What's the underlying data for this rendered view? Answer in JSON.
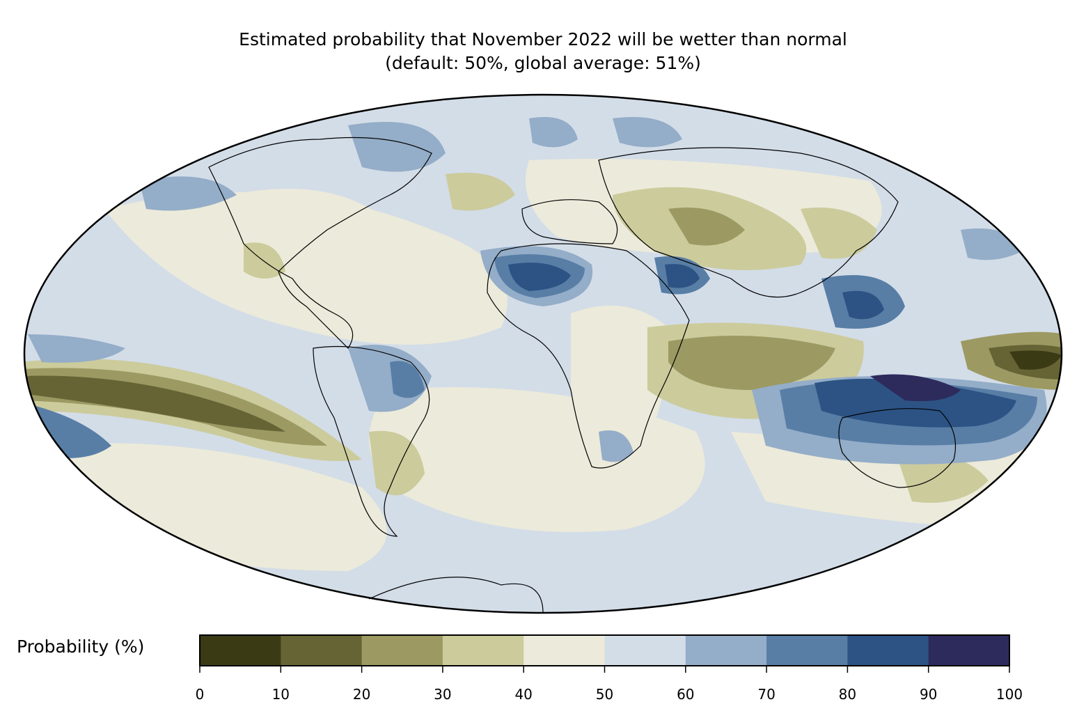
{
  "title": {
    "line1": "Estimated probability that November 2022 will be wetter than normal",
    "line2": "(default: 50%, global average: 51%)"
  },
  "colorbar": {
    "label": "Probability (%)",
    "ticks": [
      "0",
      "10",
      "20",
      "30",
      "40",
      "50",
      "60",
      "70",
      "80",
      "90",
      "100"
    ],
    "bins": [
      {
        "range": [
          0,
          10
        ],
        "color": "#3a3a14"
      },
      {
        "range": [
          10,
          20
        ],
        "color": "#666435"
      },
      {
        "range": [
          20,
          30
        ],
        "color": "#9c9a62"
      },
      {
        "range": [
          30,
          40
        ],
        "color": "#cccb9c"
      },
      {
        "range": [
          40,
          50
        ],
        "color": "#eceada"
      },
      {
        "range": [
          50,
          60
        ],
        "color": "#d3dde8"
      },
      {
        "range": [
          60,
          70
        ],
        "color": "#94adc8"
      },
      {
        "range": [
          70,
          80
        ],
        "color": "#587ea6"
      },
      {
        "range": [
          80,
          90
        ],
        "color": "#2c5384"
      },
      {
        "range": [
          90,
          100
        ],
        "color": "#2d2a5c"
      }
    ]
  },
  "map": {
    "projection": "Mollweide",
    "variable": "probability of wetter than normal",
    "month": "November 2022"
  }
}
